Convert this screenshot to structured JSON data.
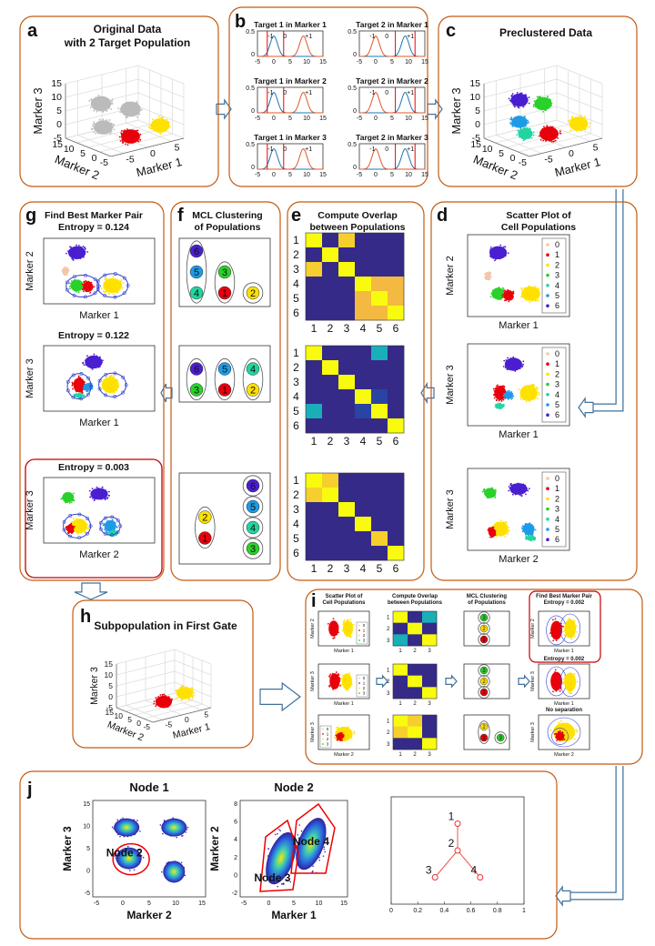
{
  "population_colors": [
    "#f4c6a8",
    "#e8000b",
    "#ffe100",
    "#2bd12b",
    "#20d6a0",
    "#1e9be6",
    "#4a1fd0"
  ],
  "a": {
    "letter": "a",
    "title": [
      "Original Data",
      "with 2 Target Population"
    ],
    "zlabel": "Marker 3",
    "ylabel": "Marker 2",
    "xlabel": "Marker 1",
    "zticks": [
      15,
      10,
      5,
      0,
      -5
    ],
    "yticks": [
      15,
      10,
      5,
      0,
      -5
    ],
    "xticks": [
      -5,
      0,
      5
    ]
  },
  "b": {
    "letter": "b",
    "yticks": [
      0.5,
      0
    ],
    "xticks": [
      -5,
      0,
      5,
      10,
      15
    ],
    "plots": [
      {
        "title": "Target 1 in Marker 1",
        "labels": [
          "-1",
          "0",
          "+1"
        ]
      },
      {
        "title": "Target 2 in Marker 1",
        "labels": [
          "-1",
          "0",
          "+1"
        ]
      },
      {
        "title": "Target 1 in Marker 2",
        "labels": [
          "-1",
          "0",
          "+1"
        ]
      },
      {
        "title": "Target 2 in Marker 2",
        "labels": [
          "-1",
          "0",
          "+1"
        ]
      },
      {
        "title": "Target 1 in Marker 3",
        "labels": [
          "-1",
          "0",
          "+1"
        ]
      },
      {
        "title": "Target 2 in Marker 3",
        "labels": [
          "-1",
          "0",
          "+1"
        ]
      }
    ]
  },
  "c": {
    "letter": "c",
    "title": [
      "Preclustered Data"
    ],
    "zlabel": "Marker 3",
    "ylabel": "Marker 2",
    "xlabel": "Marker 1",
    "zticks": [
      15,
      10,
      5,
      0,
      -5
    ],
    "yticks": [
      15,
      10,
      5,
      0,
      -5
    ],
    "xticks": [
      -5,
      0,
      5
    ]
  },
  "d": {
    "letter": "d",
    "title": [
      "Scatter Plot of",
      "Cell Populations"
    ],
    "legend": [
      "0",
      "1",
      "2",
      "3",
      "4",
      "5",
      "6"
    ],
    "plots": [
      {
        "ylabel": "Marker 2",
        "xlabel": "Marker 1"
      },
      {
        "ylabel": "Marker 3",
        "xlabel": "Marker 1"
      },
      {
        "ylabel": "Marker 3",
        "xlabel": "Marker 2"
      }
    ]
  },
  "e": {
    "letter": "e",
    "title": [
      "Compute Overlap",
      "between Populations"
    ],
    "ticks": [
      1,
      2,
      3,
      4,
      5,
      6
    ],
    "matrices": [
      [
        [
          1,
          0,
          0.9,
          0,
          0,
          0
        ],
        [
          0,
          1,
          0,
          0,
          0,
          0
        ],
        [
          0.9,
          0,
          1,
          0,
          0,
          0
        ],
        [
          0,
          0,
          0,
          1,
          0.85,
          0.85
        ],
        [
          0,
          0,
          0,
          0.85,
          1,
          0.85
        ],
        [
          0,
          0,
          0,
          0.85,
          0.85,
          1
        ]
      ],
      [
        [
          1,
          0,
          0,
          0,
          0.5,
          0
        ],
        [
          0,
          1,
          0,
          0,
          0,
          0
        ],
        [
          0,
          0,
          1,
          0,
          0,
          0
        ],
        [
          0,
          0,
          0,
          1,
          0.1,
          0
        ],
        [
          0.5,
          0,
          0,
          0.1,
          1,
          0
        ],
        [
          0,
          0,
          0,
          0,
          0,
          1
        ]
      ],
      [
        [
          1,
          0.9,
          0,
          0,
          0,
          0
        ],
        [
          0.9,
          1,
          0,
          0,
          0,
          0
        ],
        [
          0,
          0,
          1,
          0,
          0,
          0
        ],
        [
          0,
          0,
          0,
          1,
          0,
          0
        ],
        [
          0,
          0,
          0,
          0,
          0.9,
          0
        ],
        [
          0,
          0,
          0,
          0,
          0,
          1
        ]
      ]
    ]
  },
  "f": {
    "letter": "f",
    "title": [
      "MCL Clustering",
      "of Populations"
    ],
    "groupings": [
      [
        [
          6,
          5,
          4
        ],
        [
          3,
          1
        ],
        [
          2
        ]
      ],
      [
        [
          6,
          3
        ],
        [
          5,
          1
        ],
        [
          4,
          2
        ]
      ],
      [
        [
          2,
          1
        ],
        [
          6
        ],
        [
          5
        ],
        [
          4
        ],
        [
          3
        ]
      ]
    ]
  },
  "g": {
    "letter": "g",
    "title": "Find Best Marker Pair",
    "plots": [
      {
        "entropy": "Entropy = 0.124",
        "ylabel": "Marker 2",
        "xlabel": "Marker 1"
      },
      {
        "entropy": "Entropy = 0.122",
        "ylabel": "Marker 3",
        "xlabel": "Marker 1"
      },
      {
        "entropy": "Entropy = 0.003",
        "ylabel": "Marker 3",
        "xlabel": "Marker 2"
      }
    ]
  },
  "h": {
    "letter": "h",
    "title": [
      "Subpopulation in First Gate"
    ],
    "zlabel": "Marker 3",
    "ylabel": "Marker 2",
    "xlabel": "Marker 1",
    "zticks": [
      15,
      10,
      5,
      0,
      -5
    ],
    "yticks": [
      15,
      10,
      5,
      0,
      -5
    ],
    "xticks": [
      -5,
      0,
      5
    ]
  },
  "i": {
    "letter": "i",
    "headers": [
      [
        "Scatter Plot of",
        "Cell Populations"
      ],
      [
        "Compute Overlap",
        "between Populations"
      ],
      [
        "MCL Clustering",
        "of Populations"
      ],
      [
        "Find Best Marker Pair",
        "Entropy = 0.002"
      ]
    ],
    "legend": [
      "0",
      "1",
      "2",
      "3"
    ],
    "ticks": [
      1,
      2,
      3
    ],
    "rows": [
      {
        "scatter": {
          "ylabel": "Marker 2",
          "xlabel": "Marker 1"
        },
        "matrix": [
          [
            1,
            0,
            0.5
          ],
          [
            0,
            1,
            0
          ],
          [
            0.5,
            0,
            1
          ]
        ],
        "groups": [
          [
            3
          ],
          [
            2
          ],
          [
            1
          ]
        ],
        "best": {
          "ylabel": "Marker 2",
          "xlabel": "Marker 1"
        }
      },
      {
        "scatter": {
          "ylabel": "Marker 3",
          "xlabel": "Marker 1"
        },
        "matrix": [
          [
            1,
            0,
            0
          ],
          [
            0,
            1,
            0
          ],
          [
            0,
            0,
            1
          ]
        ],
        "groups": [
          [
            3
          ],
          [
            2
          ],
          [
            1
          ]
        ],
        "best": {
          "title": "Entropy = 0.002",
          "ylabel": "Marker 3",
          "xlabel": "Marker 1"
        }
      },
      {
        "scatter": {
          "ylabel": "Marker 3",
          "xlabel": "Marker 2"
        },
        "matrix": [
          [
            1,
            0.9,
            0
          ],
          [
            0.9,
            1,
            0
          ],
          [
            0,
            0,
            1
          ]
        ],
        "groups": [
          [
            2,
            1
          ],
          [
            3
          ]
        ],
        "best": {
          "title": "No separation",
          "ylabel": "Marker 3",
          "xlabel": "Marker 2"
        }
      }
    ]
  },
  "j": {
    "letter": "j",
    "plots": [
      {
        "title": "Node 1",
        "ylabel": "Marker 3",
        "xlabel": "Marker 2",
        "yticks": [
          15,
          10,
          5,
          0,
          -5
        ],
        "xticks": [
          -5,
          0,
          5,
          10,
          15
        ],
        "labels": [
          "Node 2"
        ]
      },
      {
        "title": "Node 2",
        "ylabel": "Marker 2",
        "xlabel": "Marker 1",
        "yticks": [
          8,
          6,
          4,
          2,
          0,
          -2
        ],
        "xticks": [
          -5,
          0,
          5,
          10,
          15
        ],
        "labels": [
          "Node 3",
          "Node 4"
        ]
      }
    ],
    "tree": {
      "xlim": [
        0,
        1
      ],
      "ylim": [
        0,
        1
      ],
      "xticks": [
        0,
        0.2,
        0.4,
        0.6,
        0.8,
        1
      ],
      "nodes": [
        {
          "label": "1",
          "x": 0.5,
          "y": 0.75
        },
        {
          "label": "2",
          "x": 0.5,
          "y": 0.5
        },
        {
          "label": "3",
          "x": 0.33,
          "y": 0.25
        },
        {
          "label": "4",
          "x": 0.67,
          "y": 0.25
        }
      ],
      "edges": [
        [
          0,
          1
        ],
        [
          1,
          2
        ],
        [
          1,
          3
        ]
      ]
    }
  }
}
